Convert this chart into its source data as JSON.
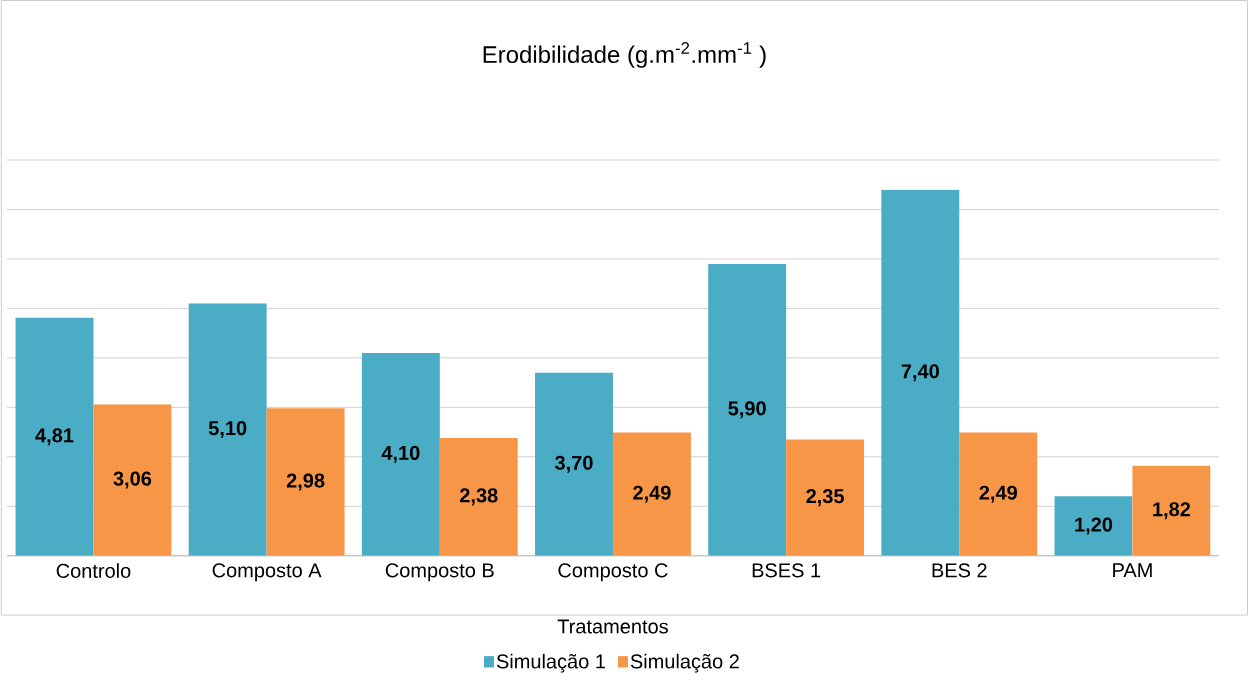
{
  "chart_data": {
    "type": "bar",
    "title": "Erodibilidade (g.m$^{-2}$.mm$^{-1}$ )",
    "xlabel": "Tratamentos",
    "categories": [
      "Controlo",
      "Composto A",
      "Composto B",
      "Composto C",
      "BSES 1",
      "BES 2",
      "PAM"
    ],
    "series": [
      {
        "name": "Simulação 1",
        "color": "#4bacc6",
        "values": [
          4.81,
          5.1,
          4.1,
          3.7,
          5.9,
          7.4,
          1.2
        ],
        "value_labels": [
          "4,81",
          "5,10",
          "4,10",
          "3,70",
          "5,90",
          "7,40",
          "1,20"
        ]
      },
      {
        "name": "Simulação 2",
        "color": "#f79646",
        "values": [
          3.06,
          2.98,
          2.38,
          2.49,
          2.35,
          2.49,
          1.82
        ],
        "value_labels": [
          "3,06",
          "2,98",
          "2,38",
          "2,49",
          "2,35",
          "2,49",
          "1,82"
        ]
      }
    ],
    "ylim": [
      0,
      8
    ],
    "yticks": [
      {
        "value": 0,
        "label": null
      },
      {
        "value": 1,
        "label": null
      },
      {
        "value": 2,
        "label": null
      },
      {
        "value": 3,
        "label": null
      },
      {
        "value": 4,
        "label": null
      },
      {
        "value": 5,
        "label": null
      },
      {
        "value": 6,
        "label": null
      },
      {
        "value": 7,
        "label": null
      },
      {
        "value": 8,
        "label": null
      }
    ],
    "grid": "y",
    "tick_labels": "x",
    "legend": "bottom"
  }
}
